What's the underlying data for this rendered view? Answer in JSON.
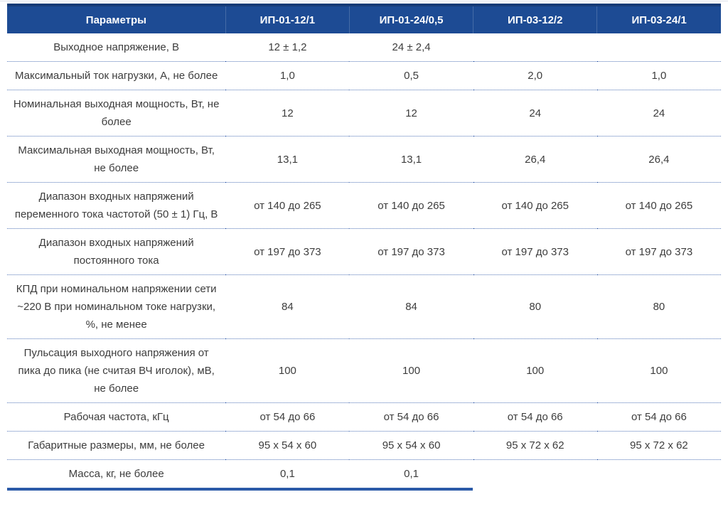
{
  "table": {
    "columns": [
      "Параметры",
      "ИП-01-12/1",
      "ИП-01-24/0,5",
      "ИП-03-12/2",
      "ИП-03-24/1"
    ],
    "rows": [
      {
        "label": "Выходное напряжение, В",
        "values": [
          "12 ± 1,2",
          "24 ± 2,4",
          "",
          ""
        ]
      },
      {
        "label": "Максимальный ток нагрузки, А, не более",
        "values": [
          "1,0",
          "0,5",
          "2,0",
          "1,0"
        ]
      },
      {
        "label": "Номинальная выходная мощность, Вт, не более",
        "values": [
          "12",
          "12",
          "24",
          "24"
        ]
      },
      {
        "label": "Максимальная выходная мощность, Вт, не более",
        "values": [
          "13,1",
          "13,1",
          "26,4",
          "26,4"
        ]
      },
      {
        "label": "Диапазон входных напряжений переменного тока частотой (50 ± 1) Гц, В",
        "values": [
          "от 140 до 265",
          "от 140 до 265",
          "от 140 до 265",
          "от 140 до 265"
        ]
      },
      {
        "label": "Диапазон входных напряжений постоянного тока",
        "values": [
          "от 197 до 373",
          "от 197 до 373",
          "от 197 до 373",
          "от 197 до 373"
        ]
      },
      {
        "label": "КПД при номинальном напряжении сети ~220 В при номинальном токе нагрузки, %, не менее",
        "values": [
          "84",
          "84",
          "80",
          "80"
        ]
      },
      {
        "label": "Пульсация выходного напряжения от пика до пика (не считая ВЧ иголок), мВ, не более",
        "values": [
          "100",
          "100",
          "100",
          "100"
        ]
      },
      {
        "label": "Рабочая частота, кГц",
        "values": [
          "от 54 до 66",
          "от 54 до 66",
          "от 54 до 66",
          "от 54 до 66"
        ]
      },
      {
        "label": "Габаритные размеры, мм, не более",
        "values": [
          "95 х 54 х 60",
          "95 х 54 х 60",
          "95 х 72 х 62",
          "95 х 72 х 62"
        ]
      },
      {
        "label": "Масса, кг, не более",
        "values": [
          "0,1",
          "0,1",
          "",
          ""
        ]
      }
    ],
    "colors": {
      "header_bg": "#1D4B94",
      "header_border_top": "#173B76",
      "divider_dotted": "#5577B8",
      "bottom_line": "#2B5AA8",
      "text": "#3D3D3D",
      "header_text": "#FFFFFF"
    }
  }
}
